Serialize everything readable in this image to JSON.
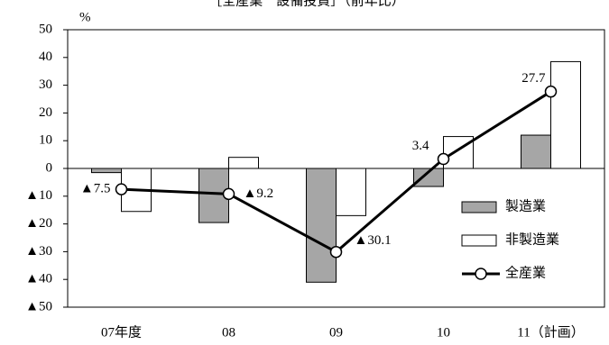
{
  "chart_data": {
    "type": "bar+line",
    "title": "［全産業　設備投資］（前年比）",
    "y_unit": "%",
    "categories": [
      "07年度",
      "08",
      "09",
      "10",
      "11（計画）"
    ],
    "series": [
      {
        "name": "製造業",
        "type": "bar",
        "color": "#a6a6a6",
        "values": [
          -1.5,
          -19.5,
          -41,
          -6.5,
          12
        ]
      },
      {
        "name": "非製造業",
        "type": "bar",
        "color": "#ffffff",
        "values": [
          -15.5,
          4,
          -17,
          11.5,
          38.5
        ]
      },
      {
        "name": "全産業",
        "type": "line",
        "color": "#000000",
        "values": [
          -7.5,
          -9.2,
          -30.1,
          3.4,
          27.7
        ],
        "value_labels": [
          "▲7.5",
          "▲9.2",
          "▲30.1",
          "3.4",
          "27.7"
        ]
      }
    ],
    "ylim": [
      -50,
      50
    ],
    "yticks": [
      50,
      40,
      30,
      20,
      10,
      0,
      {
        "value": -10,
        "label": "▲10"
      },
      {
        "value": -20,
        "label": "▲20"
      },
      {
        "value": -30,
        "label": "▲30"
      },
      {
        "value": -40,
        "label": "▲40"
      },
      {
        "value": -50,
        "label": "▲50"
      }
    ],
    "grid": false
  }
}
